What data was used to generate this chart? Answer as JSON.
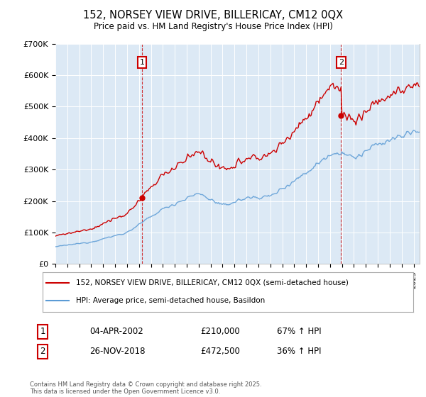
{
  "title": "152, NORSEY VIEW DRIVE, BILLERICAY, CM12 0QX",
  "subtitle": "Price paid vs. HM Land Registry's House Price Index (HPI)",
  "legend_label_red": "152, NORSEY VIEW DRIVE, BILLERICAY, CM12 0QX (semi-detached house)",
  "legend_label_blue": "HPI: Average price, semi-detached house, Basildon",
  "footer": "Contains HM Land Registry data © Crown copyright and database right 2025.\nThis data is licensed under the Open Government Licence v3.0.",
  "xlim_start": 1995,
  "xlim_end": 2025.5,
  "ylim": [
    0,
    700000
  ],
  "yticks": [
    0,
    100000,
    200000,
    300000,
    400000,
    500000,
    600000,
    700000
  ],
  "ytick_labels": [
    "£0",
    "£100K",
    "£200K",
    "£300K",
    "£400K",
    "£500K",
    "£600K",
    "£700K"
  ],
  "sale1_year": 2002.25,
  "sale1_price": 210000,
  "sale1_index": 1,
  "sale1_date": "04-APR-2002",
  "sale1_pct": "67% ↑ HPI",
  "sale2_year": 2018.92,
  "sale2_price": 472500,
  "sale2_index": 2,
  "sale2_date": "26-NOV-2018",
  "sale2_pct": "36% ↑ HPI",
  "red_color": "#cc0000",
  "blue_color": "#5b9bd5",
  "plot_bg_color": "#dce9f5",
  "background_color": "#ffffff",
  "grid_color": "#ffffff",
  "vline_color": "#cc0000",
  "label_box_color": "#cc0000"
}
